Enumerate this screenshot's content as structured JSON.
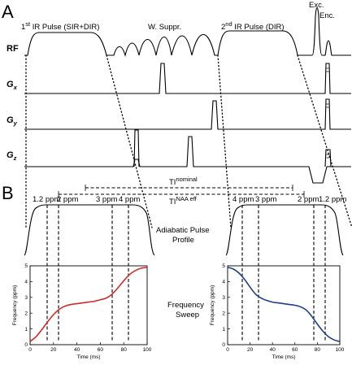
{
  "panels": {
    "a_letter": "A",
    "b_letter": "B"
  },
  "timing": {
    "row_labels": {
      "rf": "RF",
      "gx": "G",
      "gx_sub": "x",
      "gy": "G",
      "gy_sub": "y",
      "gz": "G",
      "gz_sub": "z"
    },
    "annotations": {
      "ir1_sup": "st",
      "ir1_pre": "1",
      "ir1_text": " IR Pulse (SIR+DIR)",
      "wsuppr": "W. Suppr.",
      "ir2_pre": "2",
      "ir2_sup": "nd",
      "ir2_text": " IR Pulse (DIR)",
      "exc": "Exc.",
      "enc": "Enc."
    },
    "ti_nominal": "TI",
    "ti_nominal_sup": "nominal",
    "ti_eff": "TI",
    "ti_eff_sup": "NAA eff"
  },
  "profiles": {
    "left_ppm": [
      "1.2 ppm",
      "2 ppm",
      "3 ppm",
      "4 ppm"
    ],
    "right_ppm": [
      "4 ppm",
      "3 ppm",
      "2 ppm",
      "1.2 ppm"
    ],
    "profile_label_1": "Adiabatic Pulse",
    "profile_label_2": "Profile",
    "sweep_label_1": "Frequency",
    "sweep_label_2": "Sweep"
  },
  "chart_data": [
    {
      "type": "line",
      "xlabel": "Time (ms)",
      "ylabel": "Frequency (ppm)",
      "xlim": [
        0,
        100
      ],
      "ylim": [
        0,
        5
      ],
      "x_ticks": [
        "0",
        "20",
        "40",
        "60",
        "80",
        "100"
      ],
      "y_ticks": [
        "0",
        "1",
        "2",
        "3",
        "4",
        "5"
      ],
      "color": "#d42a2a",
      "x": [
        0,
        5,
        10,
        15,
        20,
        25,
        30,
        35,
        40,
        45,
        50,
        55,
        60,
        65,
        70,
        75,
        80,
        85,
        90,
        95,
        100
      ],
      "y": [
        0.2,
        0.5,
        0.95,
        1.45,
        1.9,
        2.25,
        2.45,
        2.55,
        2.6,
        2.65,
        2.7,
        2.75,
        2.85,
        2.95,
        3.2,
        3.6,
        4.05,
        4.45,
        4.7,
        4.85,
        4.9
      ]
    },
    {
      "type": "line",
      "xlabel": "Time (ms)",
      "ylabel": "Frequency (ppm)",
      "xlim": [
        0,
        100
      ],
      "ylim": [
        0,
        5
      ],
      "x_ticks": [
        "0",
        "20",
        "40",
        "60",
        "80",
        "100"
      ],
      "y_ticks": [
        "0",
        "1",
        "2",
        "3",
        "4",
        "5"
      ],
      "color": "#1b3f8c",
      "x": [
        0,
        5,
        10,
        15,
        20,
        25,
        30,
        35,
        40,
        45,
        50,
        55,
        60,
        65,
        70,
        75,
        80,
        85,
        90,
        95,
        100
      ],
      "y": [
        4.9,
        4.8,
        4.55,
        4.15,
        3.65,
        3.2,
        2.95,
        2.8,
        2.7,
        2.65,
        2.6,
        2.55,
        2.5,
        2.4,
        2.2,
        1.8,
        1.3,
        0.85,
        0.5,
        0.3,
        0.2
      ]
    }
  ]
}
